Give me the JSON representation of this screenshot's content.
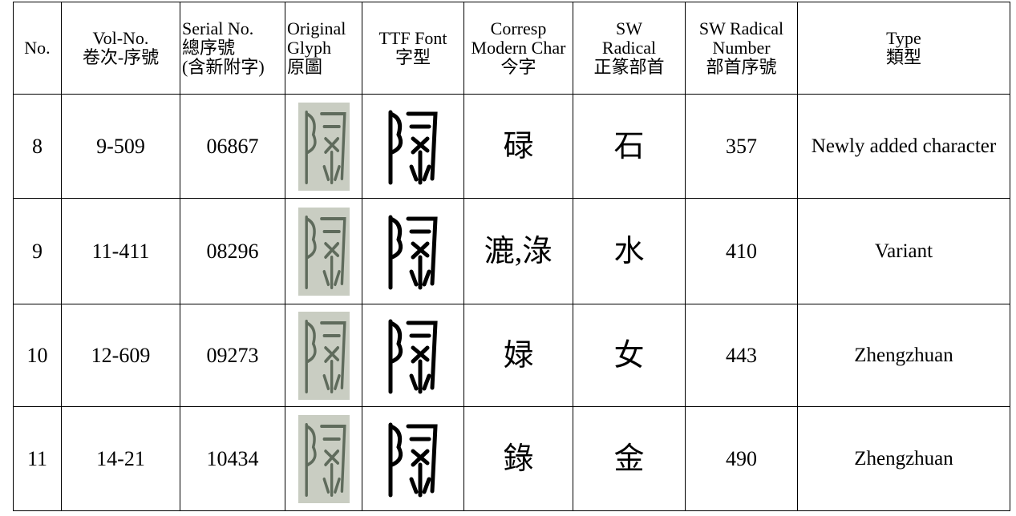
{
  "table": {
    "header": [
      [
        "No."
      ],
      [
        "Vol-No.",
        "卷次-序號"
      ],
      [
        "Serial No.",
        "總序號",
        "(含新附字)"
      ],
      [
        "Original",
        "Glyph",
        "原圖"
      ],
      [
        "TTF Font",
        "字型"
      ],
      [
        "Corresp",
        "Modern Char",
        "今字"
      ],
      [
        "SW",
        "Radical",
        "正篆部首"
      ],
      [
        "SW Radical",
        "Number",
        "部首序號"
      ],
      [
        "Type",
        "類型"
      ]
    ],
    "rows": [
      {
        "no": 8,
        "vol": "9-509",
        "serial": "06867",
        "modern": "碌",
        "radical": "石",
        "radical_number": 357,
        "type": "Newly added character"
      },
      {
        "no": 9,
        "vol": "11-411",
        "serial": "08296",
        "modern": "漉,淥",
        "radical": "水",
        "radical_number": 410,
        "type": "Variant"
      },
      {
        "no": 10,
        "vol": "12-609",
        "serial": "09273",
        "modern": "娽",
        "radical": "女",
        "radical_number": 443,
        "type": "Zhengzhuan"
      },
      {
        "no": 11,
        "vol": "14-21",
        "serial": "10434",
        "modern": "錄",
        "radical": "金",
        "radical_number": 490,
        "type": "Zhengzhuan"
      }
    ]
  }
}
